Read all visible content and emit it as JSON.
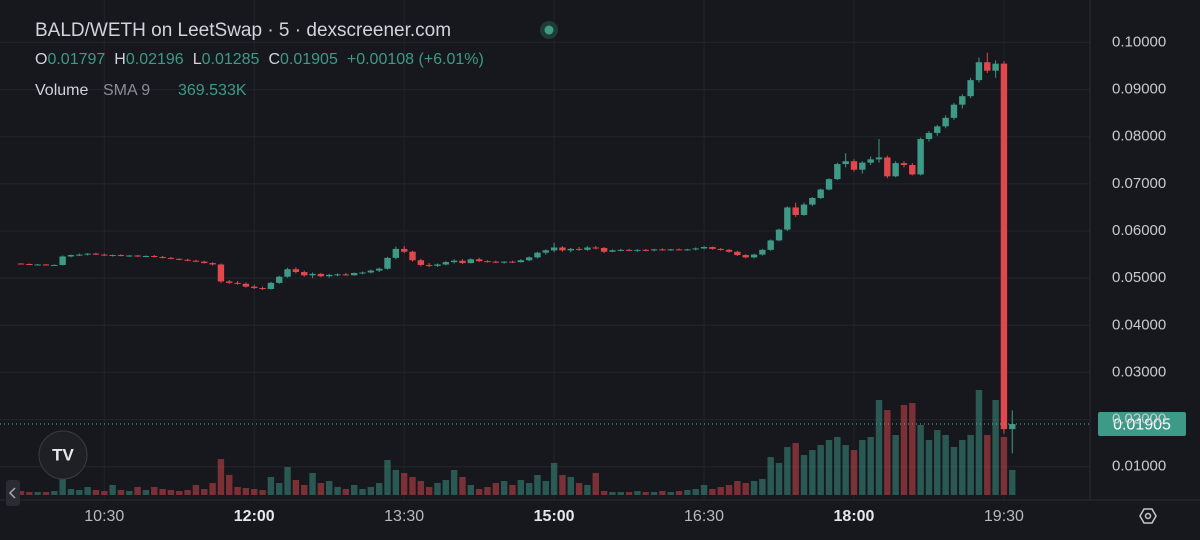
{
  "chart_data": {
    "type": "candlestick",
    "title": "BALD/WETH on LeetSwap · 5 · dexscreener.com",
    "ohlc_letters": [
      "O",
      "H",
      "L",
      "C"
    ],
    "change": "+0.00108 (+6.01%)",
    "volume_label": "Volume",
    "sma_label": "SMA 9",
    "sma_value": "369.533K",
    "up_color": "#3d9a87",
    "down_color": "#e0484d",
    "x": [
      "09:40",
      "09:45",
      "09:50",
      "09:55",
      "10:00",
      "10:05",
      "10:10",
      "10:15",
      "10:20",
      "10:25",
      "10:30",
      "10:35",
      "10:40",
      "10:45",
      "10:50",
      "10:55",
      "11:00",
      "11:05",
      "11:10",
      "11:15",
      "11:20",
      "11:25",
      "11:30",
      "11:35",
      "11:40",
      "11:45",
      "11:50",
      "11:55",
      "12:00",
      "12:05",
      "12:10",
      "12:15",
      "12:20",
      "12:25",
      "12:30",
      "12:35",
      "12:40",
      "12:45",
      "12:50",
      "12:55",
      "13:00",
      "13:05",
      "13:10",
      "13:15",
      "13:20",
      "13:25",
      "13:30",
      "13:35",
      "13:40",
      "13:45",
      "13:50",
      "13:55",
      "14:00",
      "14:05",
      "14:10",
      "14:15",
      "14:20",
      "14:25",
      "14:30",
      "14:35",
      "14:40",
      "14:45",
      "14:50",
      "14:55",
      "15:00",
      "15:05",
      "15:10",
      "15:15",
      "15:20",
      "15:25",
      "15:30",
      "15:35",
      "15:40",
      "15:45",
      "15:50",
      "15:55",
      "16:00",
      "16:05",
      "16:10",
      "16:15",
      "16:20",
      "16:25",
      "16:30",
      "16:35",
      "16:40",
      "16:45",
      "16:50",
      "16:55",
      "17:00",
      "17:05",
      "17:10",
      "17:15",
      "17:20",
      "17:25",
      "17:30",
      "17:35",
      "17:40",
      "17:45",
      "17:50",
      "17:55",
      "18:00",
      "18:05",
      "18:10",
      "18:15",
      "18:20",
      "18:25",
      "18:30",
      "18:35",
      "18:40",
      "18:45",
      "18:50",
      "18:55",
      "19:00",
      "19:05",
      "19:10",
      "19:15",
      "19:20",
      "19:25",
      "19:30",
      "19:35"
    ],
    "ohlc": [
      [
        0.0531,
        0.0532,
        0.0529,
        0.053
      ],
      [
        0.053,
        0.0531,
        0.0528,
        0.0529
      ],
      [
        0.0529,
        0.053,
        0.0528,
        0.0529
      ],
      [
        0.0529,
        0.053,
        0.0527,
        0.0528
      ],
      [
        0.0528,
        0.0529,
        0.0527,
        0.0528
      ],
      [
        0.0528,
        0.0548,
        0.0527,
        0.0546
      ],
      [
        0.0546,
        0.055,
        0.0544,
        0.0549
      ],
      [
        0.0549,
        0.0552,
        0.0547,
        0.055
      ],
      [
        0.055,
        0.0553,
        0.0548,
        0.0552
      ],
      [
        0.0552,
        0.0554,
        0.0549,
        0.055
      ],
      [
        0.055,
        0.0552,
        0.0547,
        0.0548
      ],
      [
        0.0548,
        0.055,
        0.0546,
        0.0549
      ],
      [
        0.0549,
        0.0551,
        0.0546,
        0.0547
      ],
      [
        0.0547,
        0.0549,
        0.0545,
        0.0548
      ],
      [
        0.0548,
        0.0549,
        0.0545,
        0.0546
      ],
      [
        0.0546,
        0.0548,
        0.0544,
        0.0547
      ],
      [
        0.0547,
        0.0549,
        0.0544,
        0.0545
      ],
      [
        0.0545,
        0.0547,
        0.0542,
        0.0543
      ],
      [
        0.0543,
        0.0545,
        0.054,
        0.0541
      ],
      [
        0.0541,
        0.0542,
        0.0538,
        0.0539
      ],
      [
        0.0539,
        0.0541,
        0.0536,
        0.0537
      ],
      [
        0.0537,
        0.0539,
        0.0534,
        0.0535
      ],
      [
        0.0535,
        0.0537,
        0.0531,
        0.0532
      ],
      [
        0.0532,
        0.0534,
        0.0527,
        0.0529
      ],
      [
        0.0529,
        0.0531,
        0.049,
        0.0493
      ],
      [
        0.0493,
        0.0496,
        0.0488,
        0.049
      ],
      [
        0.049,
        0.0494,
        0.0486,
        0.0488
      ],
      [
        0.0488,
        0.0491,
        0.048,
        0.0482
      ],
      [
        0.0482,
        0.0486,
        0.0477,
        0.0479
      ],
      [
        0.0479,
        0.0482,
        0.0475,
        0.0477
      ],
      [
        0.0477,
        0.0492,
        0.0476,
        0.049
      ],
      [
        0.049,
        0.0505,
        0.0488,
        0.0503
      ],
      [
        0.0503,
        0.0522,
        0.0501,
        0.0519
      ],
      [
        0.0519,
        0.0523,
        0.051,
        0.0513
      ],
      [
        0.0513,
        0.0516,
        0.0503,
        0.0506
      ],
      [
        0.0506,
        0.0512,
        0.05,
        0.0509
      ],
      [
        0.0509,
        0.0511,
        0.0502,
        0.0504
      ],
      [
        0.0504,
        0.0509,
        0.0501,
        0.0507
      ],
      [
        0.0507,
        0.051,
        0.0504,
        0.0508
      ],
      [
        0.0508,
        0.0511,
        0.0505,
        0.0506
      ],
      [
        0.0506,
        0.0512,
        0.0505,
        0.0511
      ],
      [
        0.0511,
        0.0514,
        0.0508,
        0.0512
      ],
      [
        0.0512,
        0.0518,
        0.051,
        0.0516
      ],
      [
        0.0516,
        0.0522,
        0.0513,
        0.052
      ],
      [
        0.052,
        0.0545,
        0.0518,
        0.0543
      ],
      [
        0.0543,
        0.0567,
        0.054,
        0.0562
      ],
      [
        0.0562,
        0.0568,
        0.0553,
        0.0556
      ],
      [
        0.0556,
        0.0558,
        0.0535,
        0.0538
      ],
      [
        0.0538,
        0.0541,
        0.0525,
        0.0528
      ],
      [
        0.0528,
        0.0532,
        0.0523,
        0.0526
      ],
      [
        0.0526,
        0.0531,
        0.0524,
        0.0529
      ],
      [
        0.0529,
        0.0536,
        0.0527,
        0.0534
      ],
      [
        0.0534,
        0.054,
        0.0531,
        0.0537
      ],
      [
        0.0537,
        0.054,
        0.053,
        0.0532
      ],
      [
        0.0532,
        0.0542,
        0.0531,
        0.054
      ],
      [
        0.054,
        0.0543,
        0.0534,
        0.0536
      ],
      [
        0.0536,
        0.0538,
        0.0533,
        0.0535
      ],
      [
        0.0535,
        0.0537,
        0.0532,
        0.0534
      ],
      [
        0.0534,
        0.0536,
        0.0531,
        0.0535
      ],
      [
        0.0535,
        0.0537,
        0.0532,
        0.0534
      ],
      [
        0.0534,
        0.054,
        0.0533,
        0.0538
      ],
      [
        0.0538,
        0.0546,
        0.0536,
        0.0544
      ],
      [
        0.0544,
        0.0556,
        0.0542,
        0.0554
      ],
      [
        0.0554,
        0.0561,
        0.055,
        0.0559
      ],
      [
        0.0559,
        0.0575,
        0.0555,
        0.0565
      ],
      [
        0.0565,
        0.0568,
        0.0556,
        0.0559
      ],
      [
        0.0559,
        0.0564,
        0.0555,
        0.0562
      ],
      [
        0.0562,
        0.0566,
        0.0558,
        0.056
      ],
      [
        0.056,
        0.0568,
        0.0558,
        0.0565
      ],
      [
        0.0565,
        0.0568,
        0.0561,
        0.0564
      ],
      [
        0.0564,
        0.0566,
        0.0553,
        0.0556
      ],
      [
        0.0556,
        0.0561,
        0.0555,
        0.0559
      ],
      [
        0.0559,
        0.0562,
        0.0557,
        0.056
      ],
      [
        0.056,
        0.0562,
        0.0557,
        0.0558
      ],
      [
        0.0558,
        0.0561,
        0.0556,
        0.056
      ],
      [
        0.056,
        0.0562,
        0.0557,
        0.0559
      ],
      [
        0.0559,
        0.0562,
        0.0557,
        0.0561
      ],
      [
        0.0561,
        0.0563,
        0.0558,
        0.056
      ],
      [
        0.056,
        0.0562,
        0.0558,
        0.0561
      ],
      [
        0.0561,
        0.0563,
        0.0559,
        0.056
      ],
      [
        0.056,
        0.0562,
        0.0558,
        0.0561
      ],
      [
        0.0561,
        0.0565,
        0.0559,
        0.0563
      ],
      [
        0.0563,
        0.0568,
        0.0561,
        0.0566
      ],
      [
        0.0566,
        0.0567,
        0.056,
        0.0562
      ],
      [
        0.0562,
        0.0564,
        0.0558,
        0.056
      ],
      [
        0.056,
        0.0562,
        0.0554,
        0.0556
      ],
      [
        0.0556,
        0.0558,
        0.0547,
        0.0549
      ],
      [
        0.0549,
        0.0551,
        0.0542,
        0.0544
      ],
      [
        0.0544,
        0.0552,
        0.0542,
        0.055
      ],
      [
        0.055,
        0.0562,
        0.0548,
        0.056
      ],
      [
        0.056,
        0.0582,
        0.0558,
        0.058
      ],
      [
        0.058,
        0.0605,
        0.0578,
        0.0603
      ],
      [
        0.0603,
        0.0652,
        0.06,
        0.065
      ],
      [
        0.065,
        0.066,
        0.063,
        0.0634
      ],
      [
        0.0634,
        0.066,
        0.0632,
        0.0656
      ],
      [
        0.0656,
        0.0672,
        0.0653,
        0.067
      ],
      [
        0.067,
        0.069,
        0.0668,
        0.0688
      ],
      [
        0.0688,
        0.0712,
        0.0686,
        0.071
      ],
      [
        0.071,
        0.0745,
        0.0708,
        0.0742
      ],
      [
        0.0742,
        0.0765,
        0.0735,
        0.0748
      ],
      [
        0.0748,
        0.0752,
        0.0726,
        0.073
      ],
      [
        0.073,
        0.0748,
        0.0722,
        0.0745
      ],
      [
        0.0745,
        0.0758,
        0.074,
        0.0752
      ],
      [
        0.0752,
        0.0795,
        0.0745,
        0.0756
      ],
      [
        0.0756,
        0.076,
        0.0712,
        0.0716
      ],
      [
        0.0716,
        0.0748,
        0.0714,
        0.0744
      ],
      [
        0.0744,
        0.0748,
        0.0735,
        0.074
      ],
      [
        0.074,
        0.0744,
        0.0718,
        0.072
      ],
      [
        0.072,
        0.0798,
        0.0718,
        0.0795
      ],
      [
        0.0795,
        0.0812,
        0.079,
        0.0808
      ],
      [
        0.0808,
        0.0825,
        0.0802,
        0.0822
      ],
      [
        0.0822,
        0.0845,
        0.0818,
        0.084
      ],
      [
        0.084,
        0.0872,
        0.0836,
        0.0868
      ],
      [
        0.0868,
        0.089,
        0.086,
        0.0886
      ],
      [
        0.0886,
        0.0925,
        0.0882,
        0.092
      ],
      [
        0.092,
        0.0968,
        0.0915,
        0.0958
      ],
      [
        0.0958,
        0.0978,
        0.0935,
        0.094
      ],
      [
        0.094,
        0.0962,
        0.0925,
        0.0955
      ],
      [
        0.0955,
        0.096,
        0.017,
        0.01797
      ],
      [
        0.01797,
        0.02196,
        0.01285,
        0.01905
      ]
    ],
    "volume": [
      4,
      3,
      3,
      3,
      4,
      20,
      6,
      5,
      8,
      5,
      4,
      10,
      5,
      4,
      8,
      5,
      8,
      6,
      5,
      4,
      5,
      10,
      6,
      12,
      36,
      20,
      8,
      7,
      6,
      5,
      18,
      12,
      28,
      15,
      10,
      22,
      12,
      14,
      8,
      6,
      10,
      6,
      8,
      12,
      35,
      25,
      22,
      18,
      14,
      8,
      12,
      15,
      25,
      18,
      10,
      6,
      8,
      12,
      14,
      10,
      15,
      12,
      20,
      14,
      32,
      20,
      18,
      12,
      10,
      22,
      4,
      3,
      3,
      3,
      4,
      3,
      3,
      4,
      3,
      4,
      5,
      6,
      10,
      6,
      8,
      10,
      14,
      12,
      14,
      16,
      38,
      32,
      48,
      52,
      40,
      45,
      50,
      55,
      58,
      50,
      45,
      55,
      58,
      95,
      85,
      60,
      90,
      92,
      70,
      55,
      65,
      60,
      48,
      55,
      60,
      105,
      60,
      95,
      58,
      25
    ],
    "ylim": [
      0.004,
      0.109
    ],
    "yticks": [
      {
        "value": 0.01,
        "label": "0.01000"
      },
      {
        "value": 0.02,
        "label": "0.02000"
      },
      {
        "value": 0.03,
        "label": "0.03000"
      },
      {
        "value": 0.04,
        "label": "0.04000"
      },
      {
        "value": 0.05,
        "label": "0.05000"
      },
      {
        "value": 0.06,
        "label": "0.06000"
      },
      {
        "value": 0.07,
        "label": "0.07000"
      },
      {
        "value": 0.08,
        "label": "0.08000"
      },
      {
        "value": 0.09,
        "label": "0.09000"
      },
      {
        "value": 0.1,
        "label": "0.10000"
      }
    ],
    "xticks": [
      "10:30",
      "12:00",
      "13:30",
      "15:00",
      "16:30",
      "18:00",
      "19:30"
    ],
    "xticks_bold": [
      false,
      true,
      false,
      true,
      false,
      true,
      false
    ],
    "grid": true
  }
}
